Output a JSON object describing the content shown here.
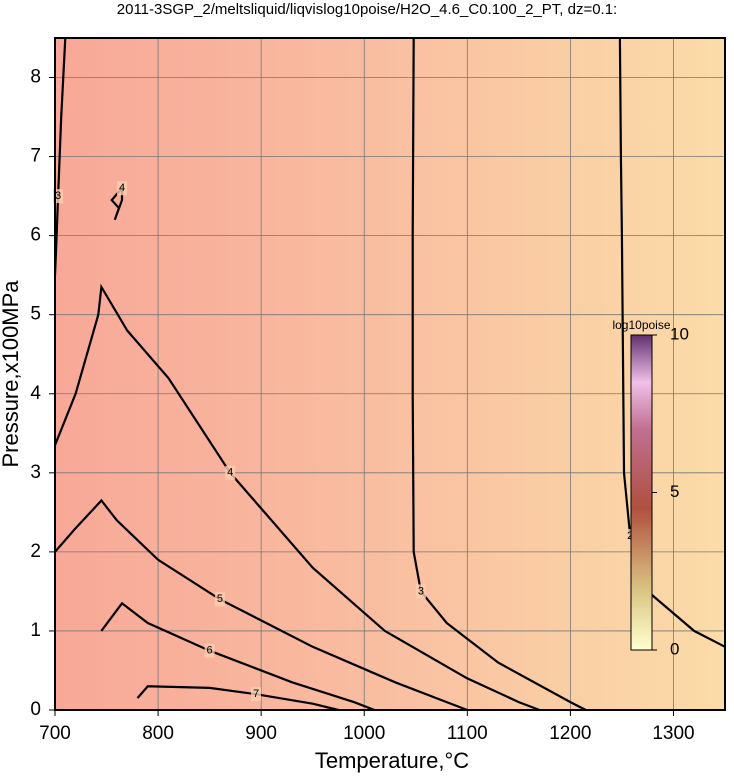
{
  "chart_data": {
    "type": "contour",
    "title": "2011-3SGP_2/meltsliquid/liqvislog10poise/H2O_4.6_C0.100_2_PT, dz=0.1:",
    "x_label": "Temperature,°C",
    "y_label": "Pressure,x100MPa",
    "xlim": [
      700,
      1350
    ],
    "ylim": [
      0,
      8.5
    ],
    "xticks": [
      700,
      800,
      900,
      1000,
      1100,
      1200,
      1300
    ],
    "yticks": [
      0,
      1,
      2,
      3,
      4,
      5,
      6,
      7,
      8
    ],
    "grid": true,
    "colorbar": {
      "label": "log10poise",
      "lim": [
        0,
        10
      ],
      "ticks": [
        0,
        5,
        10
      ]
    },
    "contours": [
      {
        "level": 2,
        "x": [
          1248,
          1249,
          1250,
          1252,
          1258,
          1275,
          1320,
          1350
        ],
        "y": [
          8.5,
          7,
          6,
          3,
          2.2,
          1.5,
          1.0,
          0.8
        ]
      },
      {
        "level": 3,
        "x": [
          1048,
          1047,
          1047,
          1048,
          1055,
          1080,
          1130,
          1200,
          1215
        ],
        "y": [
          8.5,
          6,
          4,
          2,
          1.5,
          1.1,
          0.6,
          0.1,
          0
        ]
      },
      {
        "level": 3,
        "x": [
          710,
          706,
          703,
          701,
          700
        ],
        "y": [
          8.5,
          7.5,
          6.5,
          5.8,
          5.5
        ]
      },
      {
        "level": 4,
        "x": [
          700,
          720,
          742,
          745,
          770,
          810,
          870,
          950,
          1020,
          1100,
          1150,
          1170
        ],
        "y": [
          3.35,
          4.0,
          5.0,
          5.35,
          4.8,
          4.2,
          3.0,
          1.8,
          1.0,
          0.4,
          0.1,
          0
        ]
      },
      {
        "level": 4,
        "x": [
          758,
          762,
          755,
          765,
          765,
          758
        ],
        "y": [
          6.2,
          6.35,
          6.45,
          6.6,
          6.45,
          6.2
        ]
      },
      {
        "level": 5,
        "x": [
          700,
          720,
          745,
          760,
          800,
          860,
          950,
          1030,
          1080,
          1100
        ],
        "y": [
          2.0,
          2.3,
          2.65,
          2.4,
          1.9,
          1.4,
          0.8,
          0.35,
          0.1,
          0
        ]
      },
      {
        "level": 6,
        "x": [
          745,
          765,
          790,
          850,
          930,
          990,
          1010
        ],
        "y": [
          1.0,
          1.35,
          1.1,
          0.75,
          0.35,
          0.1,
          0
        ]
      },
      {
        "level": 7,
        "x": [
          780,
          790,
          850,
          895,
          950,
          975
        ],
        "y": [
          0.15,
          0.3,
          0.28,
          0.2,
          0.08,
          0
        ]
      }
    ]
  }
}
